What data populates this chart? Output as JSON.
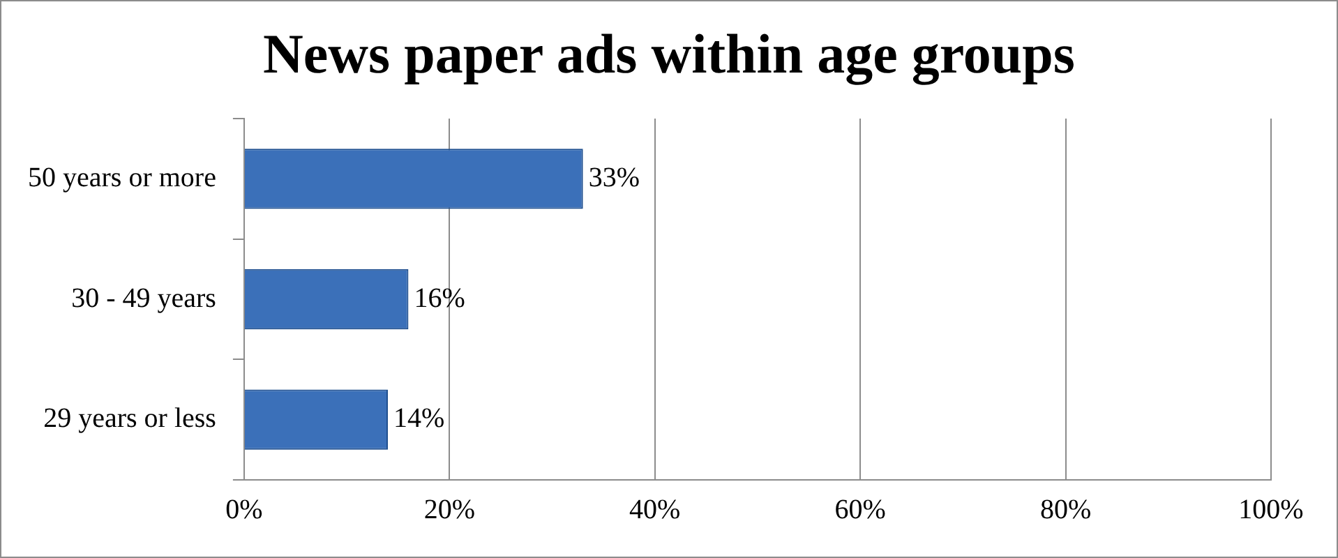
{
  "chart_data": {
    "type": "bar",
    "orientation": "horizontal",
    "title": "News paper ads within age groups",
    "categories": [
      "50 years or more",
      "30 - 49 years",
      "29 years or less"
    ],
    "values": [
      33,
      16,
      14
    ],
    "value_labels": [
      "33%",
      "16%",
      "14%"
    ],
    "color": "#3b70b9",
    "xlim": [
      0,
      100
    ],
    "xticks": [
      {
        "value": 0,
        "label": "0%"
      },
      {
        "value": 20,
        "label": "20%"
      },
      {
        "value": 40,
        "label": "40%"
      },
      {
        "value": 60,
        "label": "60%"
      },
      {
        "value": 80,
        "label": "80%"
      },
      {
        "value": 100,
        "label": "100%"
      }
    ],
    "grid": "x",
    "legend": false
  }
}
